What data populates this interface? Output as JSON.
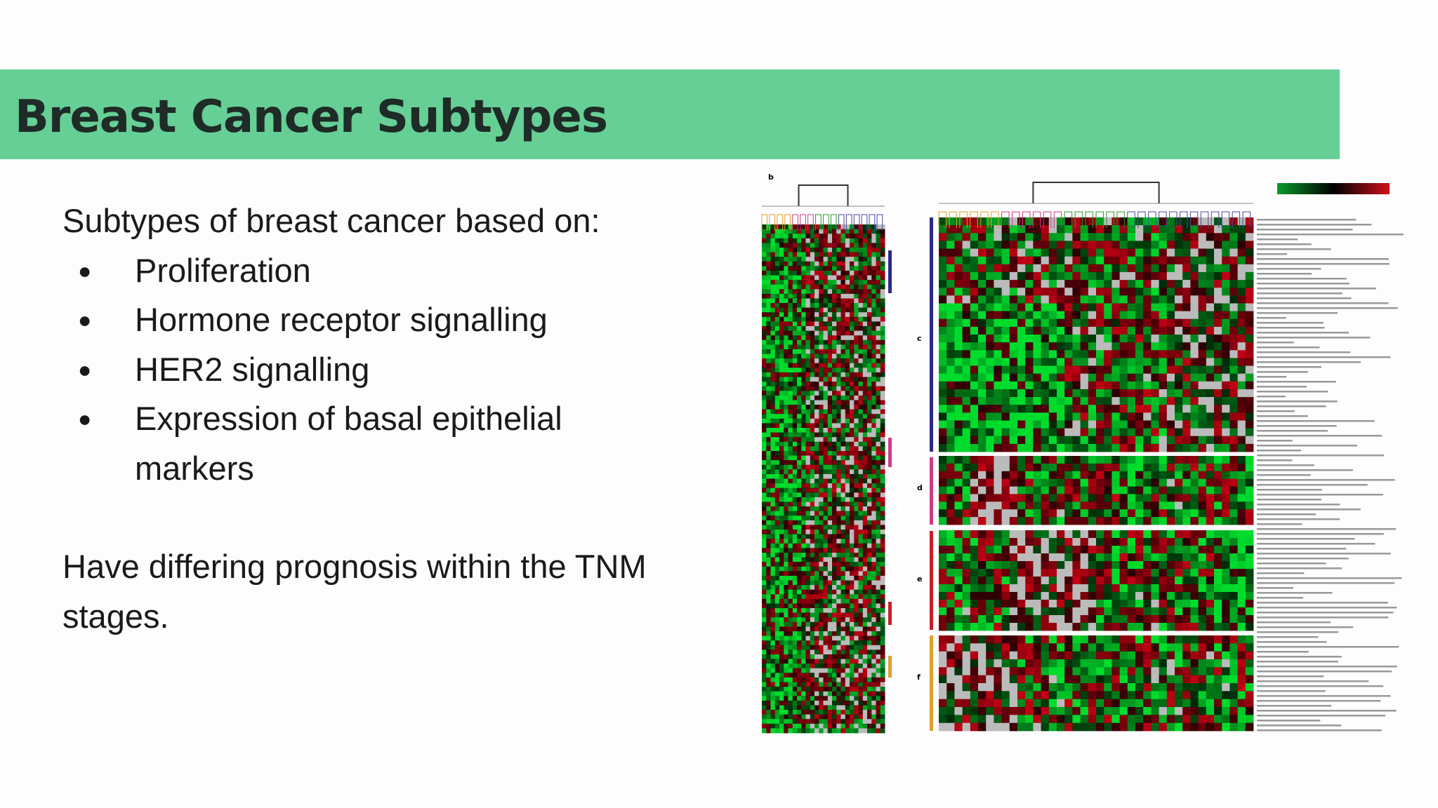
{
  "header": {
    "title": "Breast Cancer Subtypes"
  },
  "body": {
    "intro": "Subtypes of breast cancer based on:",
    "bullets": [
      "Proliferation",
      "Hormone receptor signalling",
      "HER2 signalling",
      "Expression of basal epithelial markers"
    ],
    "note": "Have differing prognosis within the TNM stages."
  },
  "figure": {
    "panel_labels": [
      "b",
      "c",
      "d",
      "e",
      "f"
    ]
  }
}
